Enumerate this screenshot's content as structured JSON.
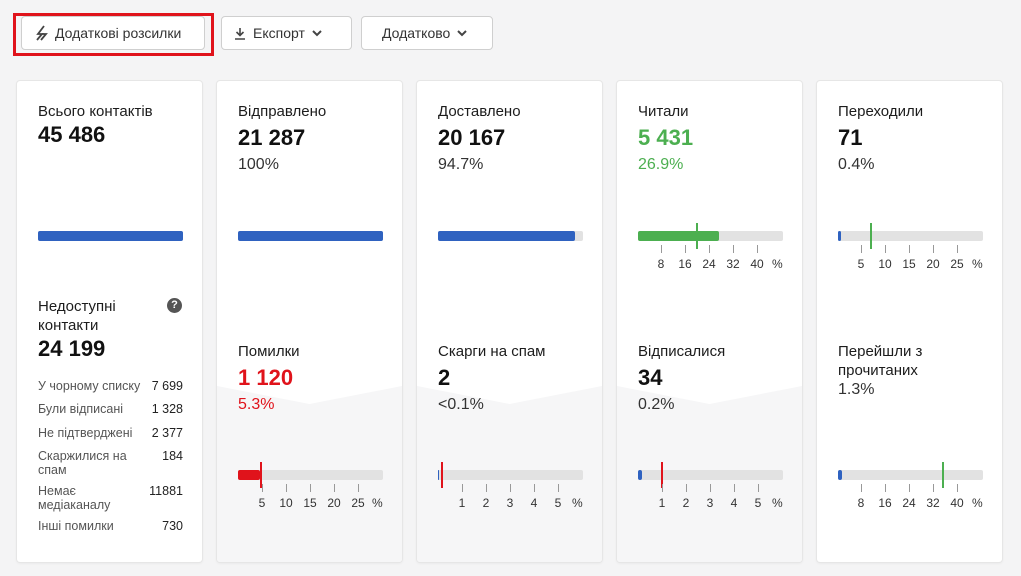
{
  "toolbar": {
    "extra_label": "Додаткові розсилки",
    "export_label": "Експорт",
    "more_label": "Додатково"
  },
  "contacts": {
    "total_label": "Всього контактів",
    "total_value": "45 486",
    "unavailable_label": "Недоступні контакти",
    "unavailable_value": "24 199",
    "rows": [
      {
        "label": "У чорному списку",
        "value": "7 699"
      },
      {
        "label": "Були відписані",
        "value": "1 328"
      },
      {
        "label": "Не підтверджені",
        "value": "2 377"
      },
      {
        "label": "Скаржилися на спам",
        "value": "184"
      },
      {
        "label": "Немає медіаканалу",
        "value": "11881"
      },
      {
        "label": "Інші помилки",
        "value": "730"
      }
    ]
  },
  "sent": {
    "label": "Відправлено",
    "value": "21 287",
    "pct": "100%",
    "errors_label": "Помилки",
    "errors_value": "1 120",
    "errors_pct": "5.3%",
    "errors_ticks": [
      "5",
      "10",
      "15",
      "20",
      "25",
      "%"
    ]
  },
  "delivered": {
    "label": "Доставлено",
    "value": "20 167",
    "pct": "94.7%",
    "spam_label": "Скарги на спам",
    "spam_value": "2",
    "spam_pct": "<0.1%",
    "spam_ticks": [
      "1",
      "2",
      "3",
      "4",
      "5",
      "%"
    ]
  },
  "read": {
    "label": "Читали",
    "value": "5 431",
    "pct": "26.9%",
    "read_ticks": [
      "8",
      "16",
      "24",
      "32",
      "40",
      "%"
    ],
    "unsub_label": "Відписалися",
    "unsub_value": "34",
    "unsub_pct": "0.2%",
    "unsub_ticks": [
      "1",
      "2",
      "3",
      "4",
      "5",
      "%"
    ]
  },
  "clicks": {
    "label": "Переходили",
    "value": "71",
    "pct": "0.4%",
    "click_ticks": [
      "5",
      "10",
      "15",
      "20",
      "25",
      "%"
    ],
    "ctor_label": "Перейшли з прочитаних",
    "ctor_pct": "1.3%",
    "ctor_ticks": [
      "8",
      "16",
      "24",
      "32",
      "40",
      "%"
    ]
  },
  "colors": {
    "blue": "#2f62c0",
    "green": "#4caf50",
    "red": "#e0131b"
  }
}
